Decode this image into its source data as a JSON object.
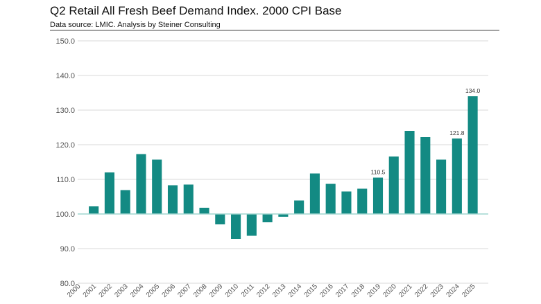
{
  "header": {
    "title": "Q2 Retail All Fresh Beef Demand Index.  2000 CPI Base",
    "subtitle": "Data source: LMIC.  Analysis by Steiner Consulting"
  },
  "colors": {
    "bar": "#138a83",
    "grid": "#d9d9d9",
    "baseline": "#9fd5cf"
  },
  "chart_data": {
    "type": "bar",
    "title": "Q2 Retail All Fresh Beef Demand Index.  2000 CPI Base",
    "xlabel": "",
    "ylabel": "",
    "ylim": [
      80,
      150
    ],
    "yticks": [
      "80.0",
      "90.0",
      "100.0",
      "110.0",
      "120.0",
      "130.0",
      "140.0",
      "150.0"
    ],
    "baseline": 100,
    "grid": true,
    "legend": "none",
    "categories": [
      "2000",
      "2001",
      "2002",
      "2003",
      "2004",
      "2005",
      "2006",
      "2007",
      "2008",
      "2009",
      "2010",
      "2011",
      "2012",
      "2013",
      "2014",
      "2015",
      "2016",
      "2017",
      "2018",
      "2019",
      "2020",
      "2021",
      "2022",
      "2023",
      "2024",
      "2025"
    ],
    "values": [
      100.0,
      102.2,
      112.0,
      106.9,
      117.3,
      115.7,
      108.3,
      108.5,
      101.8,
      97.0,
      92.8,
      93.7,
      97.6,
      99.2,
      103.9,
      111.7,
      108.7,
      106.5,
      107.3,
      110.5,
      116.6,
      124.0,
      122.2,
      115.7,
      121.8,
      134.0
    ],
    "data_labels": {
      "2019": "110.5",
      "2024": "121.8",
      "2025": "134.0"
    }
  }
}
